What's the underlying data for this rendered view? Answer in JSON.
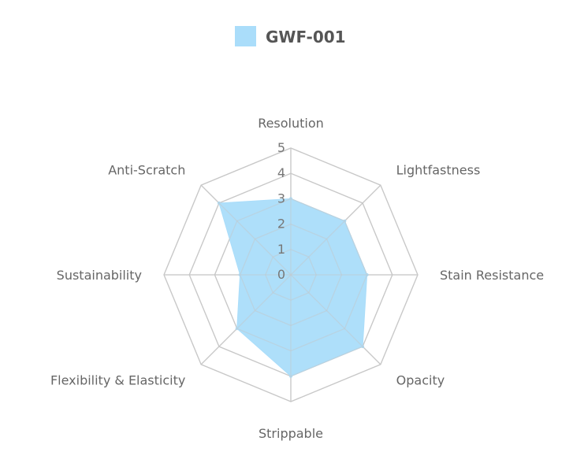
{
  "chart_data": {
    "type": "radar",
    "categories": [
      "Resolution",
      "Lightfastness",
      "Stain Resistance",
      "Opacity",
      "Strippable",
      "Flexibility & Elasticity",
      "Sustainability",
      "Anti-Scratch"
    ],
    "series": [
      {
        "name": "GWF-001",
        "values": [
          3,
          3,
          3,
          4,
          4,
          3,
          2,
          4
        ],
        "color": "#aaddfa"
      }
    ],
    "rlim": [
      0,
      5
    ],
    "ticks": [
      "0",
      "1",
      "2",
      "3",
      "4",
      "5"
    ],
    "grid": true,
    "grid_color": "#c8c8c8",
    "legend_position": "top"
  }
}
